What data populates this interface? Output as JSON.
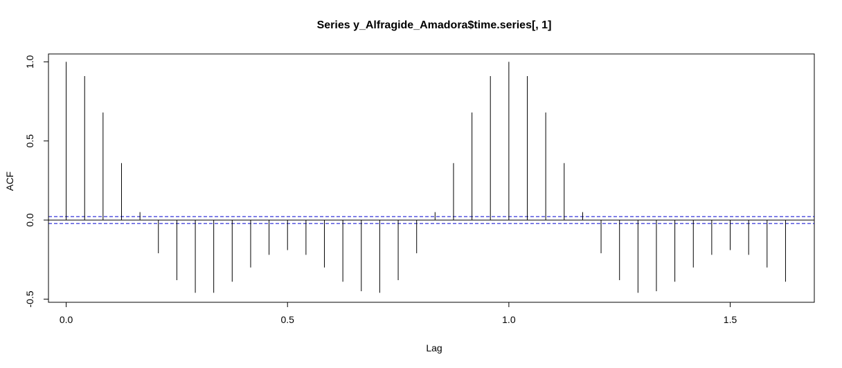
{
  "chart_data": {
    "type": "bar",
    "title": "Series  y_Alfragide_Amadora$time.series[, 1]",
    "xlabel": "Lag",
    "ylabel": "ACF",
    "xlim": [
      -0.04,
      1.69
    ],
    "ylim": [
      -0.52,
      1.05
    ],
    "x_ticks": [
      0.0,
      0.5,
      1.0,
      1.5
    ],
    "x_tick_labels": [
      "0.0",
      "0.5",
      "1.0",
      "1.5"
    ],
    "y_ticks": [
      -0.5,
      0.0,
      0.5,
      1.0
    ],
    "y_tick_labels": [
      "-0.5",
      "0.0",
      "0.5",
      "1.0"
    ],
    "ci_bounds": [
      0.022,
      -0.022
    ],
    "colors": {
      "bars": "#000000",
      "ci": "#0000CD",
      "zero_line": "#000000"
    },
    "x": [
      0.0,
      0.0417,
      0.0833,
      0.125,
      0.1667,
      0.2083,
      0.25,
      0.2917,
      0.3333,
      0.375,
      0.4167,
      0.4583,
      0.5,
      0.5417,
      0.5833,
      0.625,
      0.6667,
      0.7083,
      0.75,
      0.7917,
      0.8333,
      0.875,
      0.9167,
      0.9583,
      1.0,
      1.0417,
      1.0833,
      1.125,
      1.1667,
      1.2083,
      1.25,
      1.2917,
      1.3333,
      1.375,
      1.4167,
      1.4583,
      1.5,
      1.5417,
      1.5833,
      1.625
    ],
    "values": [
      1.0,
      0.91,
      0.68,
      0.36,
      0.05,
      -0.21,
      -0.38,
      -0.46,
      -0.46,
      -0.39,
      -0.3,
      -0.22,
      -0.19,
      -0.22,
      -0.3,
      -0.39,
      -0.45,
      -0.46,
      -0.38,
      -0.21,
      0.05,
      0.36,
      0.68,
      0.91,
      1.0,
      0.91,
      0.68,
      0.36,
      0.05,
      -0.21,
      -0.38,
      -0.46,
      -0.45,
      -0.39,
      -0.3,
      -0.22,
      -0.19,
      -0.22,
      -0.3,
      -0.39
    ]
  }
}
